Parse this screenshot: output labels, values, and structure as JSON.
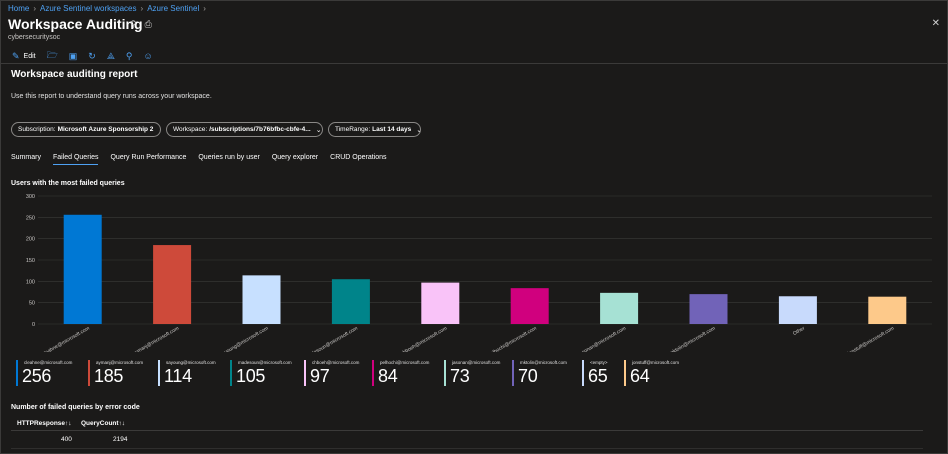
{
  "breadcrumb": [
    "Home",
    "Azure Sentinel workspaces",
    "Azure Sentinel"
  ],
  "header": {
    "title": "Workspace Auditing",
    "subtitle": "cybersecuritysoc"
  },
  "toolbar": {
    "edit_label": "Edit"
  },
  "report": {
    "title": "Workspace auditing report",
    "description": "Use this report to understand query runs across your workspace."
  },
  "filters": {
    "subscription_label": "Subscription:",
    "subscription_value": "Microsoft Azure Sponsorship 2",
    "workspace_label": "Workspace:",
    "workspace_value": "/subscriptions/7b76bfbc-cbfe-4...",
    "timerange_label": "TimeRange:",
    "timerange_value": "Last 14 days"
  },
  "tabs": [
    "Summary",
    "Failed Queries",
    "Query Run Performance",
    "Queries run by user",
    "Query explorer",
    "CRUD Operations"
  ],
  "active_tab": 1,
  "chart_title": "Users with the most failed queries",
  "chart_data": {
    "type": "bar",
    "categories": [
      "cleahne@microsoft.com",
      "aymanj@microsoft.com",
      "sayoung@microsoft.com",
      "madesoun@microsoft.com",
      "chboeh@microsoft.com",
      "pelhochi@microsoft.com",
      "jasonan@microsoft.com",
      "mktolin@microsoft.com",
      "Other",
      "jonstuff@microsoft.com"
    ],
    "values": [
      256,
      185,
      114,
      105,
      97,
      84,
      73,
      70,
      65,
      64
    ],
    "colors": [
      "#0078d4",
      "#ce4a3a",
      "#c7e0ff",
      "#00848a",
      "#f9c3f8",
      "#d0007e",
      "#a6e1d4",
      "#7163b8",
      "#c8dafc",
      "#fdc98a"
    ],
    "ylim": [
      0,
      300
    ],
    "yticks": [
      0,
      50,
      100,
      150,
      200,
      250,
      300
    ]
  },
  "kpis": [
    {
      "label": "cleahne@microsoft.com",
      "value": "256",
      "color": "#0078d4"
    },
    {
      "label": "aymanj@microsoft.com",
      "value": "185",
      "color": "#ce4a3a"
    },
    {
      "label": "sayoung@microsoft.com",
      "value": "114",
      "color": "#c7e0ff"
    },
    {
      "label": "madesoun@microsoft.com",
      "value": "105",
      "color": "#00848a"
    },
    {
      "label": "chboeh@microsoft.com",
      "value": "97",
      "color": "#f9c3f8"
    },
    {
      "label": "pelhochi@microsoft.com",
      "value": "84",
      "color": "#d0007e"
    },
    {
      "label": "jasonan@microsoft.com",
      "value": "73",
      "color": "#a6e1d4"
    },
    {
      "label": "mktolin@microsoft.com",
      "value": "70",
      "color": "#7163b8"
    },
    {
      "label": "<empty>",
      "value": "65",
      "color": "#c8dafc"
    },
    {
      "label": "jonstuff@microsoft.com",
      "value": "64",
      "color": "#fdc98a"
    }
  ],
  "table": {
    "title": "Number of failed queries by error code",
    "headers": [
      "HTTPResponse↑↓",
      "QueryCount↑↓"
    ],
    "rows": [
      [
        "400",
        "2194"
      ],
      [
        "",
        ""
      ]
    ]
  }
}
